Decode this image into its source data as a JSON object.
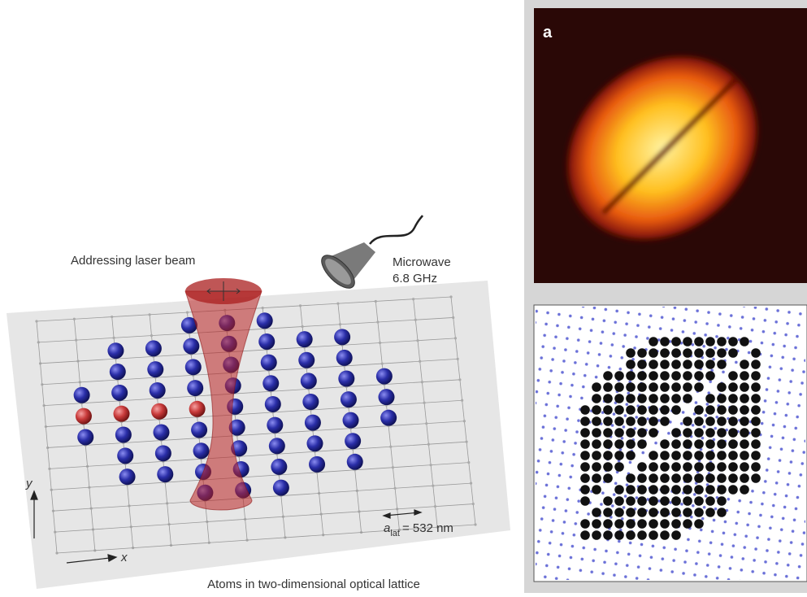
{
  "labels": {
    "beam": "Addressing laser beam",
    "microwave": "Microwave",
    "frequency": "6.8 GHz",
    "panel": "a",
    "axis_x": "x",
    "axis_y": "y",
    "lattice_constant": {
      "symbol": "a",
      "subscript": "lat",
      "value": "= 532 nm"
    },
    "caption": "Atoms in two-dimensional optical lattice"
  }
}
